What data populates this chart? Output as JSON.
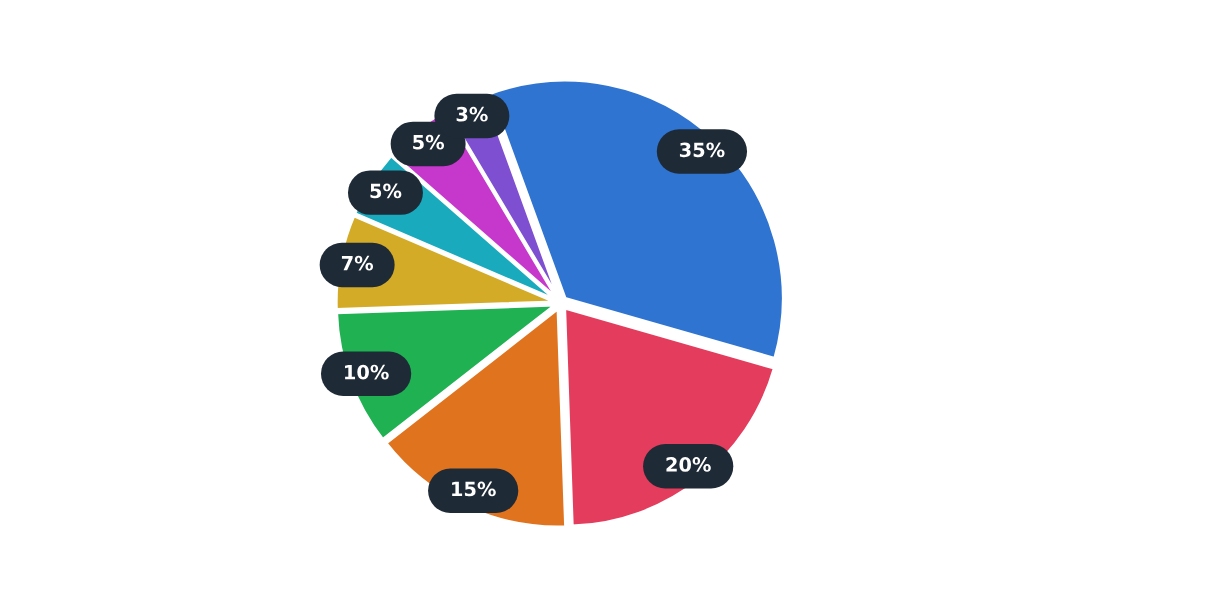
{
  "chart_data": {
    "type": "pie",
    "categories": [
      null,
      null,
      null,
      null,
      null,
      null,
      null,
      null
    ],
    "values": [
      35,
      20,
      15,
      10,
      7,
      5,
      5,
      3
    ],
    "colors": [
      "#2f74d0",
      "#e33c5c",
      "#e0731e",
      "#1fb152",
      "#d3ab26",
      "#19abbd",
      "#c637cc",
      "#7e4fd0"
    ],
    "value_labels": [
      "35%",
      "20%",
      "15%",
      "10%",
      "7%",
      "5%",
      "5%",
      "3%"
    ],
    "legend": false
  }
}
